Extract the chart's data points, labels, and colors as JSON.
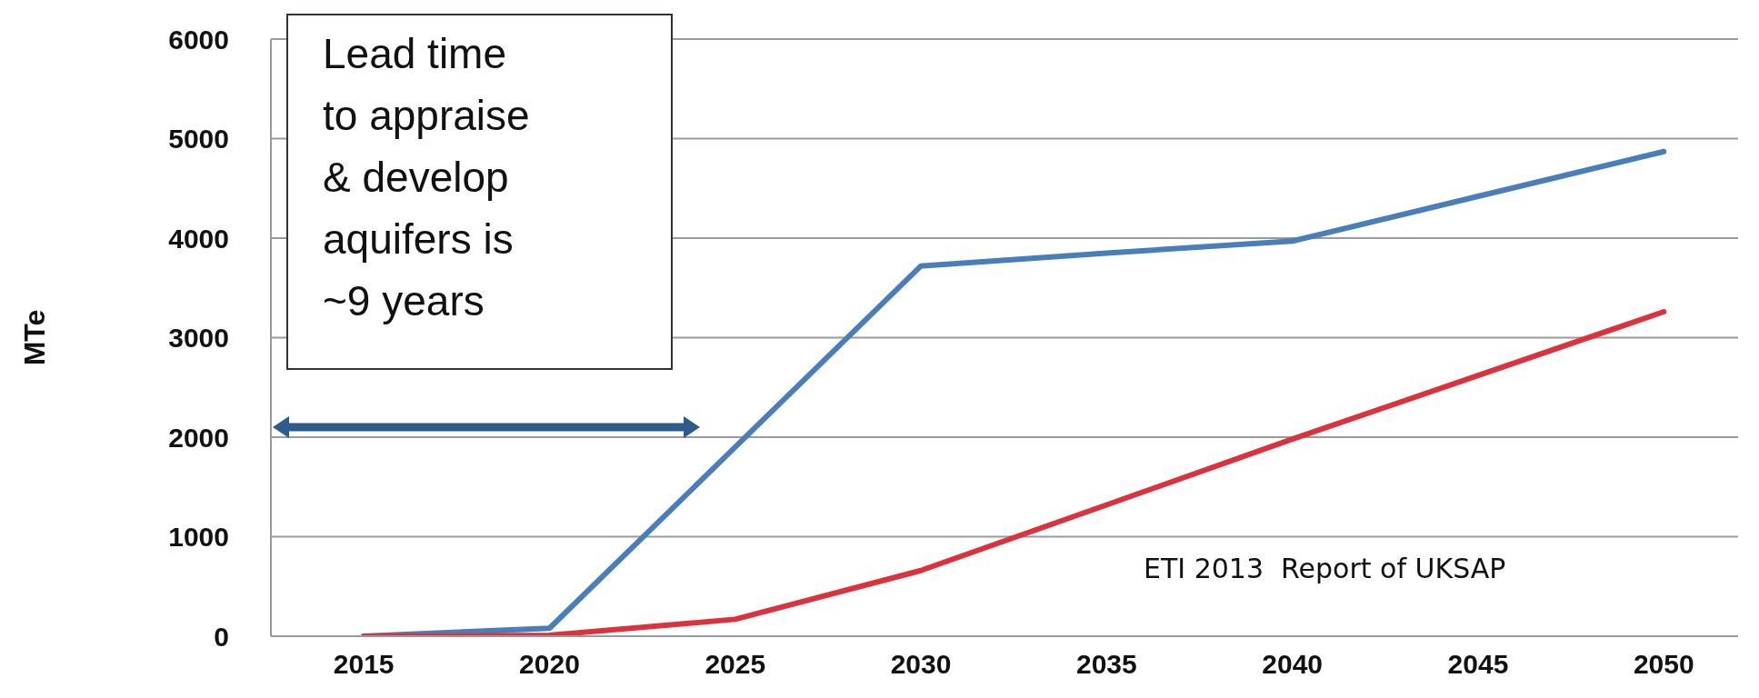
{
  "chart_data": {
    "type": "line",
    "ylabel": "MTe",
    "x": [
      2015,
      2020,
      2025,
      2030,
      2035,
      2040,
      2045,
      2050
    ],
    "series": [
      {
        "color": "#4a7ebb",
        "values": [
          0,
          80,
          1900,
          3720,
          3850,
          3970,
          4420,
          4870
        ]
      },
      {
        "color": "#d9343d",
        "values": [
          0,
          10,
          170,
          660,
          1320,
          1980,
          2620,
          3260
        ]
      }
    ],
    "xlim": [
      2012.5,
      2052
    ],
    "xticks": [
      2015,
      2020,
      2025,
      2030,
      2035,
      2040,
      2045,
      2050
    ],
    "ylim": [
      0,
      6000
    ],
    "yticks": [
      0,
      1000,
      2000,
      3000,
      4000,
      5000,
      6000
    ],
    "grid": "y",
    "legend": false,
    "marker": "none",
    "line_style": "solid",
    "annotations": [
      "Lead time\nto appraise\n& develop\naquifers is\n~9 years",
      "ETI 2013  Report of UKSAP"
    ]
  }
}
